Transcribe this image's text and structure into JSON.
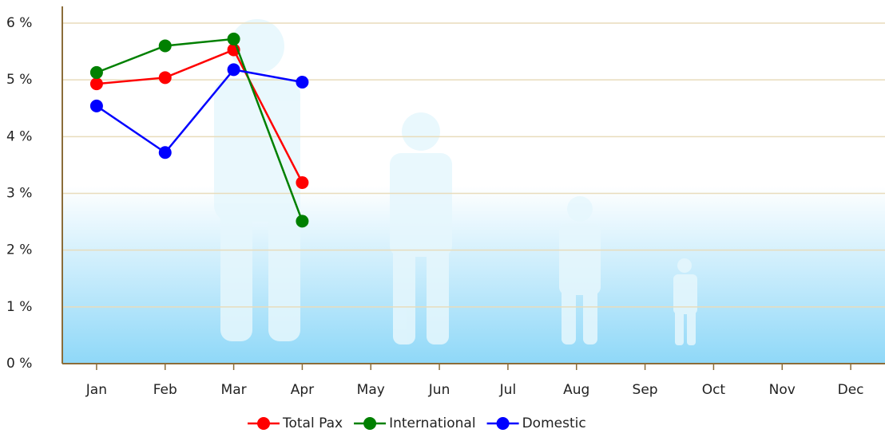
{
  "chart_data": {
    "type": "line",
    "categories": [
      "Jan",
      "Feb",
      "Mar",
      "Apr",
      "May",
      "Jun",
      "Jul",
      "Aug",
      "Sep",
      "Oct",
      "Nov",
      "Dec"
    ],
    "series": [
      {
        "name": "Total Pax",
        "color": "#ff0000",
        "values": [
          4.93,
          5.04,
          5.53,
          3.19,
          null,
          null,
          null,
          null,
          null,
          null,
          null,
          null
        ]
      },
      {
        "name": "International",
        "color": "#008000",
        "values": [
          5.13,
          5.6,
          5.72,
          2.51,
          null,
          null,
          null,
          null,
          null,
          null,
          null,
          null
        ]
      },
      {
        "name": "Domestic",
        "color": "#0000ff",
        "values": [
          4.54,
          3.72,
          5.18,
          4.96,
          null,
          null,
          null,
          null,
          null,
          null,
          null,
          null
        ]
      }
    ],
    "ylim": [
      0,
      6
    ],
    "yticks": [
      {
        "value": 0,
        "label": "0 %"
      },
      {
        "value": 1,
        "label": "1 %"
      },
      {
        "value": 2,
        "label": "2 %"
      },
      {
        "value": 3,
        "label": "3 %"
      },
      {
        "value": 4,
        "label": "4 %"
      },
      {
        "value": 5,
        "label": "5 %"
      },
      {
        "value": 6,
        "label": "6 %"
      }
    ],
    "grid": true,
    "legend": "bottom"
  }
}
